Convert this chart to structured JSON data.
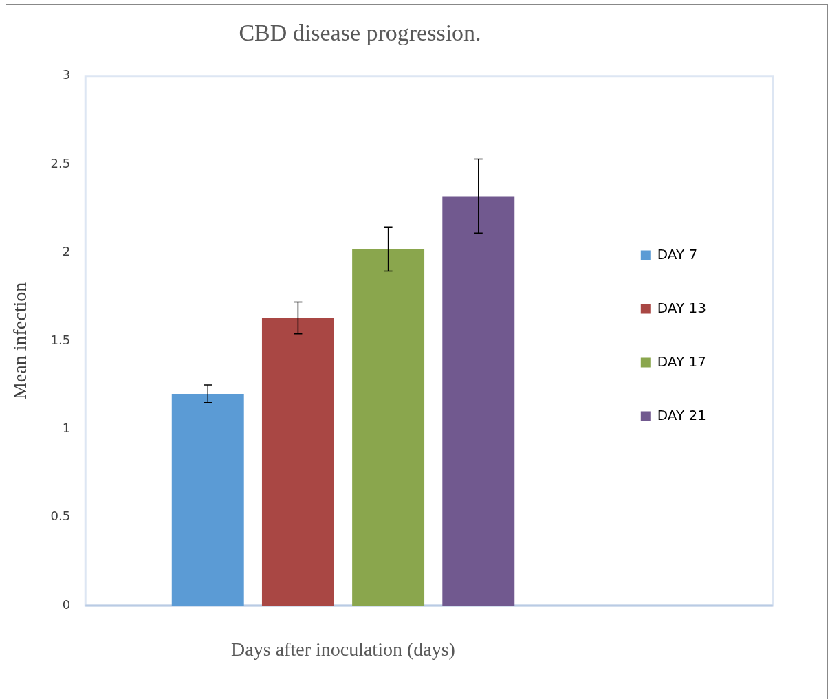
{
  "chart_data": {
    "type": "bar",
    "title": "CBD disease progression.",
    "xlabel": "Days after inoculation (days)",
    "ylabel": "Mean infection",
    "categories": [
      null
    ],
    "series": [
      {
        "name": "DAY 7",
        "color": "#5b9bd5",
        "values": [
          1.2
        ],
        "errors": [
          0.05
        ]
      },
      {
        "name": "DAY 13",
        "color": "#a94744",
        "values": [
          1.63
        ],
        "errors": [
          0.09
        ]
      },
      {
        "name": "DAY 17",
        "color": "#8aa64d",
        "values": [
          2.02
        ],
        "errors": [
          0.125
        ]
      },
      {
        "name": "DAY 21",
        "color": "#71598f",
        "values": [
          2.32
        ],
        "errors": [
          0.21
        ]
      }
    ],
    "ylim": [
      0,
      3
    ],
    "yticks": [
      0,
      0.5,
      1,
      1.5,
      2,
      2.5,
      3
    ],
    "grid": false,
    "legend": "right"
  }
}
